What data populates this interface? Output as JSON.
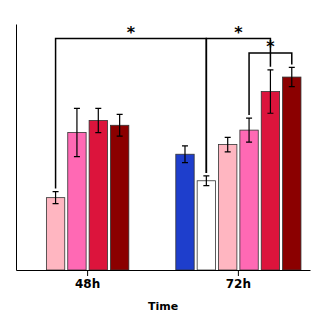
{
  "chart_data": {
    "type": "bar",
    "xlabel": "Time",
    "categories": [
      "48h",
      "72h"
    ],
    "series": [
      {
        "color": "#1E3ECC",
        "values": [
          null,
          0.48
        ],
        "errors": [
          null,
          0.035
        ]
      },
      {
        "color": "#FFFFFF",
        "values": [
          null,
          0.37
        ],
        "errors": [
          null,
          0.02
        ]
      },
      {
        "color": "#FFB6C1",
        "values": [
          0.3,
          0.52
        ],
        "errors": [
          0.025,
          0.03
        ]
      },
      {
        "color": "#FF69B4",
        "values": [
          0.57,
          0.58
        ],
        "errors": [
          0.1,
          0.05
        ]
      },
      {
        "color": "#DC143C",
        "values": [
          0.62,
          0.74
        ],
        "errors": [
          0.05,
          0.09
        ]
      },
      {
        "color": "#8B0000",
        "values": [
          0.6,
          0.8
        ],
        "errors": [
          0.045,
          0.04
        ]
      }
    ],
    "ylim": [
      0,
      1.02
    ],
    "grid": false,
    "tick_labels": "x",
    "annotations": [
      {
        "text": "*",
        "y": 0.96,
        "from": {
          "series": 2,
          "category": 0
        },
        "to": {
          "series": 1,
          "category": 1
        }
      },
      {
        "text": "*",
        "y": 0.96,
        "from": {
          "series": 1,
          "category": 1
        },
        "to": {
          "series": 4,
          "category": 1
        }
      },
      {
        "text": "*",
        "y": 0.9,
        "from": {
          "series": 3,
          "category": 1
        },
        "to": {
          "series": 5,
          "category": 1
        }
      }
    ]
  }
}
